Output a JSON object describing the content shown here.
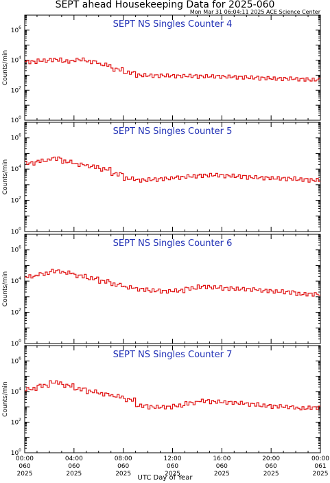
{
  "header": {
    "title": "SEPT ahead Housekeeping Data for 2025-060",
    "subtitle": "Mon Mar 31 06:04:11 2025 ACE Science Center"
  },
  "colors": {
    "series": "#e01010",
    "panel_title": "#1f2fb5",
    "axis": "#000000"
  },
  "chart_data": [
    {
      "type": "line",
      "step": true,
      "title": "SEPT NS Singles Counter 4",
      "ylabel": "Counts/min",
      "yscale": "log",
      "ylim": [
        1,
        10000000
      ],
      "yticks": [
        1,
        100,
        10000,
        1000000
      ],
      "ytick_labels": [
        "10^0",
        "10^2",
        "10^4",
        "10^6"
      ],
      "xlim": [
        0,
        24
      ],
      "x": [
        0,
        1,
        2,
        3,
        4,
        5,
        6,
        7,
        8,
        9,
        10,
        11,
        12,
        13,
        14,
        15,
        16,
        17,
        18,
        19,
        20,
        21,
        22,
        23,
        24
      ],
      "y": [
        8000,
        9500,
        11000,
        8500,
        11000,
        8000,
        5000,
        2500,
        1500,
        1000,
        950,
        950,
        900,
        900,
        850,
        850,
        800,
        750,
        700,
        650,
        600,
        600,
        550,
        500,
        450
      ]
    },
    {
      "type": "line",
      "step": true,
      "title": "SEPT NS Singles Counter 5",
      "ylabel": "Counts/min",
      "yscale": "log",
      "ylim": [
        1,
        10000000
      ],
      "yticks": [
        1,
        100,
        10000,
        1000000
      ],
      "ytick_labels": [
        "10^0",
        "10^2",
        "10^4",
        "10^6"
      ],
      "xlim": [
        0,
        24
      ],
      "x": [
        0,
        1,
        2,
        3,
        4,
        5,
        6,
        7,
        8,
        9,
        10,
        11,
        12,
        13,
        14,
        15,
        16,
        17,
        18,
        19,
        20,
        21,
        22,
        23,
        24
      ],
      "y": [
        25000,
        35000,
        50000,
        30000,
        20000,
        15000,
        10000,
        5000,
        2500,
        2000,
        2200,
        2500,
        3000,
        3500,
        4000,
        4200,
        3800,
        3500,
        3000,
        2800,
        2600,
        2500,
        2200,
        2000,
        900
      ]
    },
    {
      "type": "line",
      "step": true,
      "title": "SEPT NS Singles Counter 6",
      "ylabel": "Counts/min",
      "yscale": "log",
      "ylim": [
        1,
        10000000
      ],
      "yticks": [
        1,
        100,
        10000,
        1000000
      ],
      "ytick_labels": [
        "10^0",
        "10^2",
        "10^4",
        "10^6"
      ],
      "xlim": [
        0,
        24
      ],
      "x": [
        0,
        1,
        2,
        3,
        4,
        5,
        6,
        7,
        8,
        9,
        10,
        11,
        12,
        13,
        14,
        15,
        16,
        17,
        18,
        19,
        20,
        21,
        22,
        23,
        24
      ],
      "y": [
        20000,
        30000,
        45000,
        35000,
        22000,
        15000,
        10000,
        6000,
        4000,
        3000,
        2500,
        2300,
        2500,
        3500,
        4500,
        4000,
        3500,
        3200,
        3000,
        2500,
        2200,
        2000,
        1500,
        1500,
        1800
      ]
    },
    {
      "type": "line",
      "step": true,
      "title": "SEPT NS Singles Counter 7",
      "ylabel": "Counts/min",
      "yscale": "log",
      "ylim": [
        1,
        10000000
      ],
      "yticks": [
        1,
        100,
        10000,
        1000000
      ],
      "ytick_labels": [
        "10^0",
        "10^2",
        "10^4",
        "10^6"
      ],
      "xlim": [
        0,
        24
      ],
      "x": [
        0,
        1,
        2,
        3,
        4,
        5,
        6,
        7,
        8,
        9,
        10,
        11,
        12,
        13,
        14,
        15,
        16,
        17,
        18,
        19,
        20,
        21,
        22,
        23,
        24
      ],
      "y": [
        15000,
        25000,
        40000,
        25000,
        15000,
        10000,
        7000,
        5000,
        3000,
        1200,
        1000,
        1000,
        1200,
        1800,
        2500,
        2200,
        2000,
        1800,
        1500,
        1200,
        1100,
        1000,
        800,
        900,
        1200
      ]
    }
  ],
  "xaxis": {
    "label": "UTC Day of Year",
    "ticks": [
      {
        "x": 0,
        "time": "00:00",
        "doy": "060",
        "year": "2025"
      },
      {
        "x": 4,
        "time": "04:00",
        "doy": "060",
        "year": "2025"
      },
      {
        "x": 8,
        "time": "08:00",
        "doy": "060",
        "year": "2025"
      },
      {
        "x": 12,
        "time": "12:00",
        "doy": "060",
        "year": "2025"
      },
      {
        "x": 16,
        "time": "16:00",
        "doy": "060",
        "year": "2025"
      },
      {
        "x": 20,
        "time": "20:00",
        "doy": "060",
        "year": "2025"
      },
      {
        "x": 24,
        "time": "00:00",
        "doy": "061",
        "year": "2025"
      }
    ]
  }
}
